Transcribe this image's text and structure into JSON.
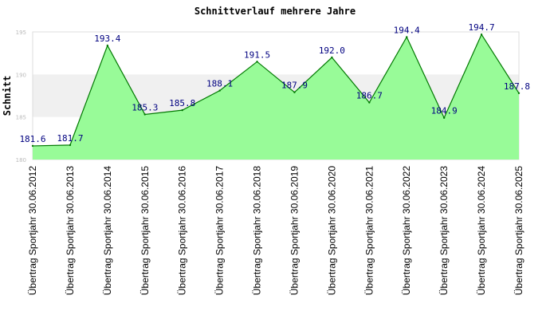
{
  "colors": {
    "area_fill": "#98fb98",
    "line": "#007800",
    "label": "#000080",
    "band": "#f0f0f0",
    "frame": "#dddddd"
  },
  "chart_data": {
    "type": "area",
    "title": "Schnittverlauf mehrere Jahre",
    "ylabel": "Schnitt",
    "xlabel": "",
    "ylim": [
      180,
      195
    ],
    "yticks": [
      180,
      185,
      190,
      195
    ],
    "grid": false,
    "legend": "none",
    "categories": [
      "Übertrag Sportjahr 30.06.2012",
      "Übertrag Sportjahr 30.06.2013",
      "Übertrag Sportjahr 30.06.2014",
      "Übertrag Sportjahr 30.06.2015",
      "Übertrag Sportjahr 30.06.2016",
      "Übertrag Sportjahr 30.06.2017",
      "Übertrag Sportjahr 30.06.2018",
      "Übertrag Sportjahr 30.06.2019",
      "Übertrag Sportjahr 30.06.2020",
      "Übertrag Sportjahr 30.06.2021",
      "Übertrag Sportjahr 30.06.2022",
      "Übertrag Sportjahr 30.06.2023",
      "Übertrag Sportjahr 30.06.2024",
      "Übertrag Sportjahr 30.06.2025"
    ],
    "values": [
      181.6,
      181.7,
      193.4,
      185.3,
      185.8,
      188.1,
      191.5,
      187.9,
      192.0,
      186.7,
      194.4,
      184.9,
      194.7,
      187.8
    ],
    "value_labels": [
      "181.6",
      "181.7",
      "193.4",
      "185.3",
      "185.8",
      "188.1",
      "191.5",
      "187.9",
      "192.0",
      "186.7",
      "194.4",
      "184.9",
      "194.7",
      "187.8"
    ]
  }
}
